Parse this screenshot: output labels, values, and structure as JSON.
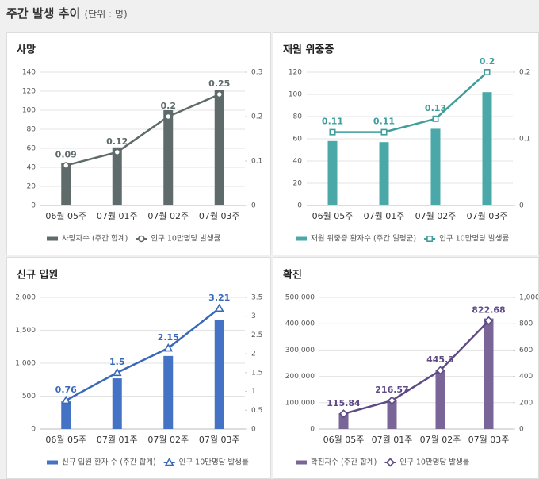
{
  "header": {
    "title": "주간 발생 추이",
    "unit": "(단위 : 명)"
  },
  "chart_data": [
    {
      "type": "bar-line",
      "title": "사망",
      "categories": [
        "06월 05주",
        "07월 01주",
        "07월 02주",
        "07월 03주"
      ],
      "series": [
        {
          "name": "사망자수 (주간 합계)",
          "type": "bar",
          "color": "#5f6a6a",
          "values": [
            45,
            61,
            100,
            121
          ]
        },
        {
          "name": "인구 10만명당 발생률",
          "type": "line",
          "axis": "y2",
          "marker": "circle",
          "color": "#5f6a6a",
          "values": [
            0.09,
            0.12,
            0.2,
            0.25
          ]
        }
      ],
      "ylim": [
        0,
        140
      ],
      "yticks": [
        0,
        20,
        40,
        60,
        80,
        100,
        120,
        140
      ],
      "y2lim": [
        0,
        0.3
      ],
      "y2ticks": [
        0,
        0.1,
        0.2,
        0.3
      ],
      "grid": true
    },
    {
      "type": "bar-line",
      "title": "재원 위중증",
      "categories": [
        "06월 05주",
        "07월 01주",
        "07월 02주",
        "07월 03주"
      ],
      "series": [
        {
          "name": "재원 위중증 환자수 (주간 일평균)",
          "type": "bar",
          "color": "#4aa9a8",
          "values": [
            58,
            57,
            69,
            102
          ]
        },
        {
          "name": "인구 10만명당 발생률",
          "type": "line",
          "axis": "y2",
          "marker": "square",
          "color": "#3f9d9c",
          "values": [
            0.11,
            0.11,
            0.13,
            0.2
          ]
        }
      ],
      "ylim": [
        0,
        120
      ],
      "yticks": [
        0,
        20,
        40,
        60,
        80,
        100,
        120
      ],
      "y2lim": [
        0,
        0.2
      ],
      "y2ticks": [
        0,
        0.1,
        0.2
      ],
      "grid": true
    },
    {
      "type": "bar-line",
      "title": "신규 입원",
      "categories": [
        "06월 05주",
        "07월 01주",
        "07월 02주",
        "07월 03주"
      ],
      "series": [
        {
          "name": "신규 입원 환자 수 (주간 합계)",
          "type": "bar",
          "color": "#4472c4",
          "values": [
            420,
            770,
            1110,
            1660
          ]
        },
        {
          "name": "인구 10만명당 발생률",
          "type": "line",
          "axis": "y2",
          "marker": "triangle",
          "color": "#3a68b8",
          "values": [
            0.76,
            1.5,
            2.15,
            3.21
          ]
        }
      ],
      "ylim": [
        0,
        2000
      ],
      "yticks": [
        0,
        500,
        {
          "value": 1000,
          "label": "1,000"
        },
        {
          "value": 1500,
          "label": "1,500"
        },
        {
          "value": 2000,
          "label": "2,000"
        }
      ],
      "y2lim": [
        0,
        3.5
      ],
      "y2ticks": [
        0,
        0.5,
        1,
        1.5,
        2,
        2.5,
        3,
        3.5
      ],
      "grid": true
    },
    {
      "type": "bar-line",
      "title": "확진",
      "categories": [
        "06월 05주",
        "07월 01주",
        "07월 02주",
        "07월 03주"
      ],
      "series": [
        {
          "name": "확진자수 (주간 합계)",
          "type": "bar",
          "color": "#7a6599",
          "values": [
            60000,
            110000,
            225000,
            420000
          ]
        },
        {
          "name": "인구 10만명당 발생률",
          "type": "line",
          "axis": "y2",
          "marker": "diamond",
          "color": "#5e4a85",
          "values": [
            115.84,
            216.57,
            445.3,
            822.68
          ]
        }
      ],
      "ylim": [
        0,
        500000
      ],
      "yticks": [
        0,
        {
          "value": 100000,
          "label": "100,000"
        },
        {
          "value": 200000,
          "label": "200,000"
        },
        {
          "value": 300000,
          "label": "300,000"
        },
        {
          "value": 400000,
          "label": "400,000"
        },
        {
          "value": 500000,
          "label": "500,000"
        }
      ],
      "y2lim": [
        0,
        1000
      ],
      "y2ticks": [
        0,
        200,
        400,
        600,
        800,
        {
          "value": 1000,
          "label": "1,000"
        }
      ],
      "grid": true
    }
  ]
}
